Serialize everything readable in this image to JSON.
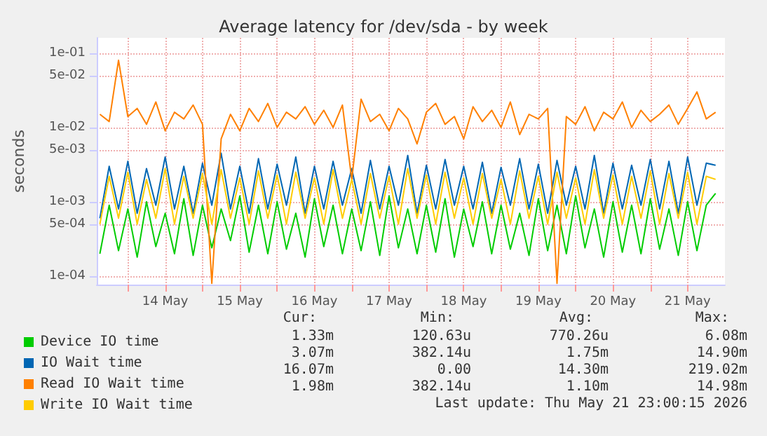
{
  "chart_data": {
    "type": "line",
    "title": "Average latency for /dev/sda - by week",
    "ylabel": "seconds",
    "x": [
      "2026-05-13T15:00",
      "2026-05-13T18:00",
      "2026-05-13T21:00",
      "2026-05-14T00:00",
      "2026-05-14T03:00",
      "2026-05-14T06:00",
      "2026-05-14T09:00",
      "2026-05-14T12:00",
      "2026-05-14T15:00",
      "2026-05-14T18:00",
      "2026-05-14T21:00",
      "2026-05-15T00:00",
      "2026-05-15T03:00",
      "2026-05-15T06:00",
      "2026-05-15T09:00",
      "2026-05-15T12:00",
      "2026-05-15T15:00",
      "2026-05-15T18:00",
      "2026-05-15T21:00",
      "2026-05-16T00:00",
      "2026-05-16T03:00",
      "2026-05-16T06:00",
      "2026-05-16T09:00",
      "2026-05-16T12:00",
      "2026-05-16T15:00",
      "2026-05-16T18:00",
      "2026-05-16T21:00",
      "2026-05-17T00:00",
      "2026-05-17T03:00",
      "2026-05-17T06:00",
      "2026-05-17T09:00",
      "2026-05-17T12:00",
      "2026-05-17T15:00",
      "2026-05-17T18:00",
      "2026-05-17T21:00",
      "2026-05-18T00:00",
      "2026-05-18T03:00",
      "2026-05-18T06:00",
      "2026-05-18T09:00",
      "2026-05-18T12:00",
      "2026-05-18T15:00",
      "2026-05-18T18:00",
      "2026-05-18T21:00",
      "2026-05-19T00:00",
      "2026-05-19T03:00",
      "2026-05-19T06:00",
      "2026-05-19T09:00",
      "2026-05-19T12:00",
      "2026-05-19T15:00",
      "2026-05-19T18:00",
      "2026-05-19T21:00",
      "2026-05-20T00:00",
      "2026-05-20T03:00",
      "2026-05-20T06:00",
      "2026-05-20T09:00",
      "2026-05-20T12:00",
      "2026-05-20T15:00",
      "2026-05-20T18:00",
      "2026-05-20T21:00",
      "2026-05-21T00:00",
      "2026-05-21T03:00",
      "2026-05-21T06:00",
      "2026-05-21T09:00",
      "2026-05-21T12:00",
      "2026-05-21T15:00",
      "2026-05-21T18:00",
      "2026-05-21T21:00"
    ],
    "series": [
      {
        "name": "Device IO time",
        "color": "#00cc00",
        "values": [
          0.0002,
          0.0009,
          0.00022,
          0.0008,
          0.00018,
          0.001,
          0.00025,
          0.0007,
          0.0002,
          0.0011,
          0.00019,
          0.0009,
          0.00024,
          0.0008,
          0.0003,
          0.0012,
          0.00021,
          0.0009,
          0.0002,
          0.001,
          0.00023,
          0.0007,
          0.00018,
          0.0011,
          0.00025,
          0.0009,
          0.0002,
          0.0008,
          0.00022,
          0.001,
          0.00019,
          0.0012,
          0.00024,
          0.0008,
          0.0002,
          0.0009,
          0.00021,
          0.0011,
          0.00018,
          0.0008,
          0.00025,
          0.001,
          0.0002,
          0.0009,
          0.00023,
          0.0007,
          0.00019,
          0.0011,
          0.00022,
          0.0009,
          0.0002,
          0.0012,
          0.00024,
          0.0008,
          0.00018,
          0.001,
          0.00021,
          0.0009,
          0.0002,
          0.0011,
          0.00023,
          0.0008,
          0.00019,
          0.001,
          0.00022,
          0.0009,
          0.0013
        ]
      },
      {
        "name": "IO Wait time",
        "color": "#0066b3",
        "values": [
          0.0006,
          0.003,
          0.0008,
          0.0035,
          0.0007,
          0.0028,
          0.0009,
          0.004,
          0.0008,
          0.003,
          0.0007,
          0.0033,
          0.0009,
          0.0045,
          0.0008,
          0.003,
          0.0007,
          0.0038,
          0.0008,
          0.0032,
          0.0009,
          0.004,
          0.0007,
          0.003,
          0.0008,
          0.0035,
          0.0009,
          0.0028,
          0.0007,
          0.0036,
          0.0008,
          0.003,
          0.0009,
          0.0042,
          0.0007,
          0.0031,
          0.0008,
          0.0037,
          0.0009,
          0.003,
          0.0008,
          0.0034,
          0.0007,
          0.0029,
          0.0009,
          0.0038,
          0.0008,
          0.0032,
          0.0007,
          0.0036,
          0.0009,
          0.003,
          0.0008,
          0.0042,
          0.0007,
          0.0033,
          0.0008,
          0.0031,
          0.0009,
          0.0037,
          0.0008,
          0.0035,
          0.0007,
          0.004,
          0.0009,
          0.0033,
          0.0031
        ]
      },
      {
        "name": "Read IO Wait time",
        "color": "#ff8000",
        "values": [
          0.015,
          0.012,
          0.08,
          0.014,
          0.018,
          0.011,
          0.022,
          0.009,
          0.016,
          0.013,
          0.02,
          0.011,
          8e-05,
          0.007,
          0.015,
          0.009,
          0.018,
          0.012,
          0.021,
          0.01,
          0.016,
          0.013,
          0.019,
          0.011,
          0.017,
          0.01,
          0.02,
          0.002,
          0.024,
          0.012,
          0.015,
          0.009,
          0.018,
          0.013,
          0.006,
          0.016,
          0.021,
          0.011,
          0.014,
          0.007,
          0.019,
          0.012,
          0.017,
          0.01,
          0.022,
          0.008,
          0.015,
          0.013,
          0.018,
          8e-05,
          0.014,
          0.011,
          0.019,
          0.009,
          0.016,
          0.013,
          0.022,
          0.01,
          0.017,
          0.012,
          0.015,
          0.02,
          0.011,
          0.018,
          0.03,
          0.013,
          0.016
        ]
      },
      {
        "name": "Write IO Wait time",
        "color": "#ffcc00",
        "values": [
          0.0005,
          0.0022,
          0.0006,
          0.0025,
          0.0005,
          0.002,
          0.0006,
          0.0028,
          0.0005,
          0.0022,
          0.0006,
          0.0024,
          0.0005,
          0.0027,
          0.0006,
          0.0021,
          0.0005,
          0.0026,
          0.0006,
          0.0023,
          0.0005,
          0.0025,
          0.0006,
          0.0021,
          0.0005,
          0.0027,
          0.0006,
          0.002,
          0.0005,
          0.0024,
          0.0006,
          0.0022,
          0.0005,
          0.0028,
          0.0006,
          0.0023,
          0.0005,
          0.0025,
          0.0006,
          0.0021,
          0.0005,
          0.0024,
          0.0006,
          0.002,
          0.0005,
          0.0026,
          0.0006,
          0.0022,
          0.0005,
          0.0025,
          0.0006,
          0.0021,
          0.0005,
          0.0027,
          0.0006,
          0.0023,
          0.0005,
          0.0022,
          0.0006,
          0.0026,
          0.0005,
          0.0024,
          0.0006,
          0.0025,
          0.0005,
          0.0022,
          0.002
        ]
      }
    ],
    "log": "y",
    "ylim": [
      7.7e-05,
      0.16
    ],
    "yticks": [
      {
        "value": 0.0001,
        "label": "1e-04"
      },
      {
        "value": 0.0005,
        "label": "5e-04"
      },
      {
        "value": 0.001,
        "label": "1e-03"
      },
      {
        "value": 0.005,
        "label": "5e-03"
      },
      {
        "value": 0.01,
        "label": "1e-02"
      },
      {
        "value": 0.05,
        "label": "5e-02"
      },
      {
        "value": 0.1,
        "label": "1e-01"
      }
    ],
    "xlim": [
      "2026-05-13T14:00",
      "2026-05-22T00:00"
    ],
    "xticks": [
      {
        "value": "2026-05-14T00:00",
        "label": null
      },
      {
        "value": "2026-05-14T12:00",
        "label": "14 May"
      },
      {
        "value": "2026-05-15T00:00",
        "label": null
      },
      {
        "value": "2026-05-15T12:00",
        "label": "15 May"
      },
      {
        "value": "2026-05-16T00:00",
        "label": null
      },
      {
        "value": "2026-05-16T12:00",
        "label": "16 May"
      },
      {
        "value": "2026-05-17T00:00",
        "label": null
      },
      {
        "value": "2026-05-17T12:00",
        "label": "17 May"
      },
      {
        "value": "2026-05-18T00:00",
        "label": null
      },
      {
        "value": "2026-05-18T12:00",
        "label": "18 May"
      },
      {
        "value": "2026-05-19T00:00",
        "label": null
      },
      {
        "value": "2026-05-19T12:00",
        "label": "19 May"
      },
      {
        "value": "2026-05-20T00:00",
        "label": null
      },
      {
        "value": "2026-05-20T12:00",
        "label": "20 May"
      },
      {
        "value": "2026-05-21T00:00",
        "label": null
      },
      {
        "value": "2026-05-21T12:00",
        "label": "21 May"
      }
    ],
    "grid": true,
    "legend": "bottom",
    "marker": "none",
    "line_style": "solid",
    "annotations": [
      "Cur:",
      "Min:",
      "Avg:",
      "Max:",
      "1.33m",
      "120.63u",
      "770.26u",
      "6.08m",
      "3.07m",
      "382.14u",
      "1.75m",
      "14.90m",
      "16.07m",
      "0.00",
      "14.30m",
      "219.02m",
      "1.98m",
      "382.14u",
      "1.10m",
      "14.98m",
      "Last update: Thu May 21 23:00:15 2026"
    ]
  }
}
